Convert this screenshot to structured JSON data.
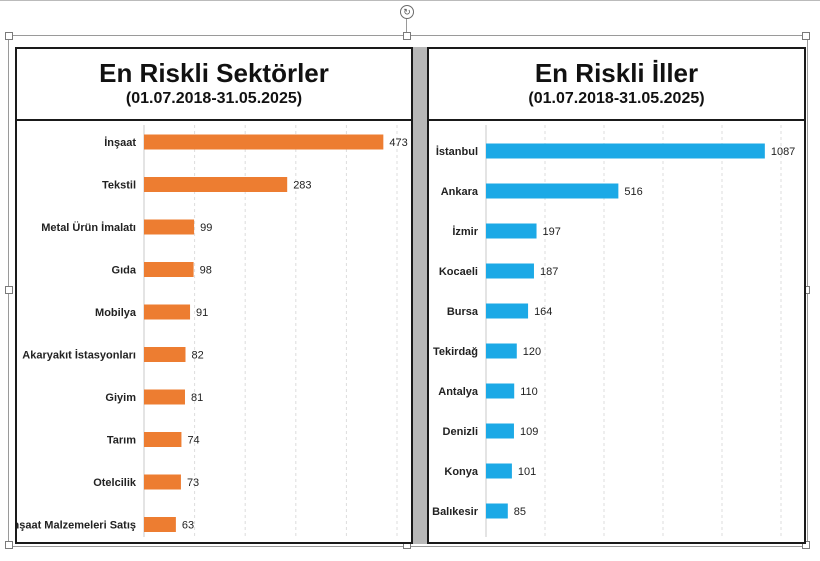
{
  "chart_data": [
    {
      "type": "bar",
      "orientation": "horizontal",
      "title": "En Riskli Sektörler",
      "subtitle": "(01.07.2018-31.05.2025)",
      "categories": [
        "İnşaat",
        "Tekstil",
        "Metal Ürün İmalatı",
        "Gıda",
        "Mobilya",
        "Akaryakıt İstasyonları",
        "Giyim",
        "Tarım",
        "Otelcilik",
        "İnşaat Malzemeleri Satış"
      ],
      "values": [
        473,
        283,
        99,
        98,
        91,
        82,
        81,
        74,
        73,
        63
      ],
      "xlim": [
        0,
        500
      ],
      "grid": true,
      "color": "#ED7D31"
    },
    {
      "type": "bar",
      "orientation": "horizontal",
      "title": "En Riskli İller",
      "subtitle": "(01.07.2018-31.05.2025)",
      "categories": [
        "İstanbul",
        "Ankara",
        "İzmir",
        "Kocaeli",
        "Bursa",
        "Tekirdağ",
        "Antalya",
        "Denizli",
        "Konya",
        "Balıkesir"
      ],
      "values": [
        1087,
        516,
        197,
        187,
        164,
        120,
        110,
        109,
        101,
        85
      ],
      "xlim": [
        0,
        1150
      ],
      "grid": true,
      "color": "#1CA9E6"
    }
  ]
}
